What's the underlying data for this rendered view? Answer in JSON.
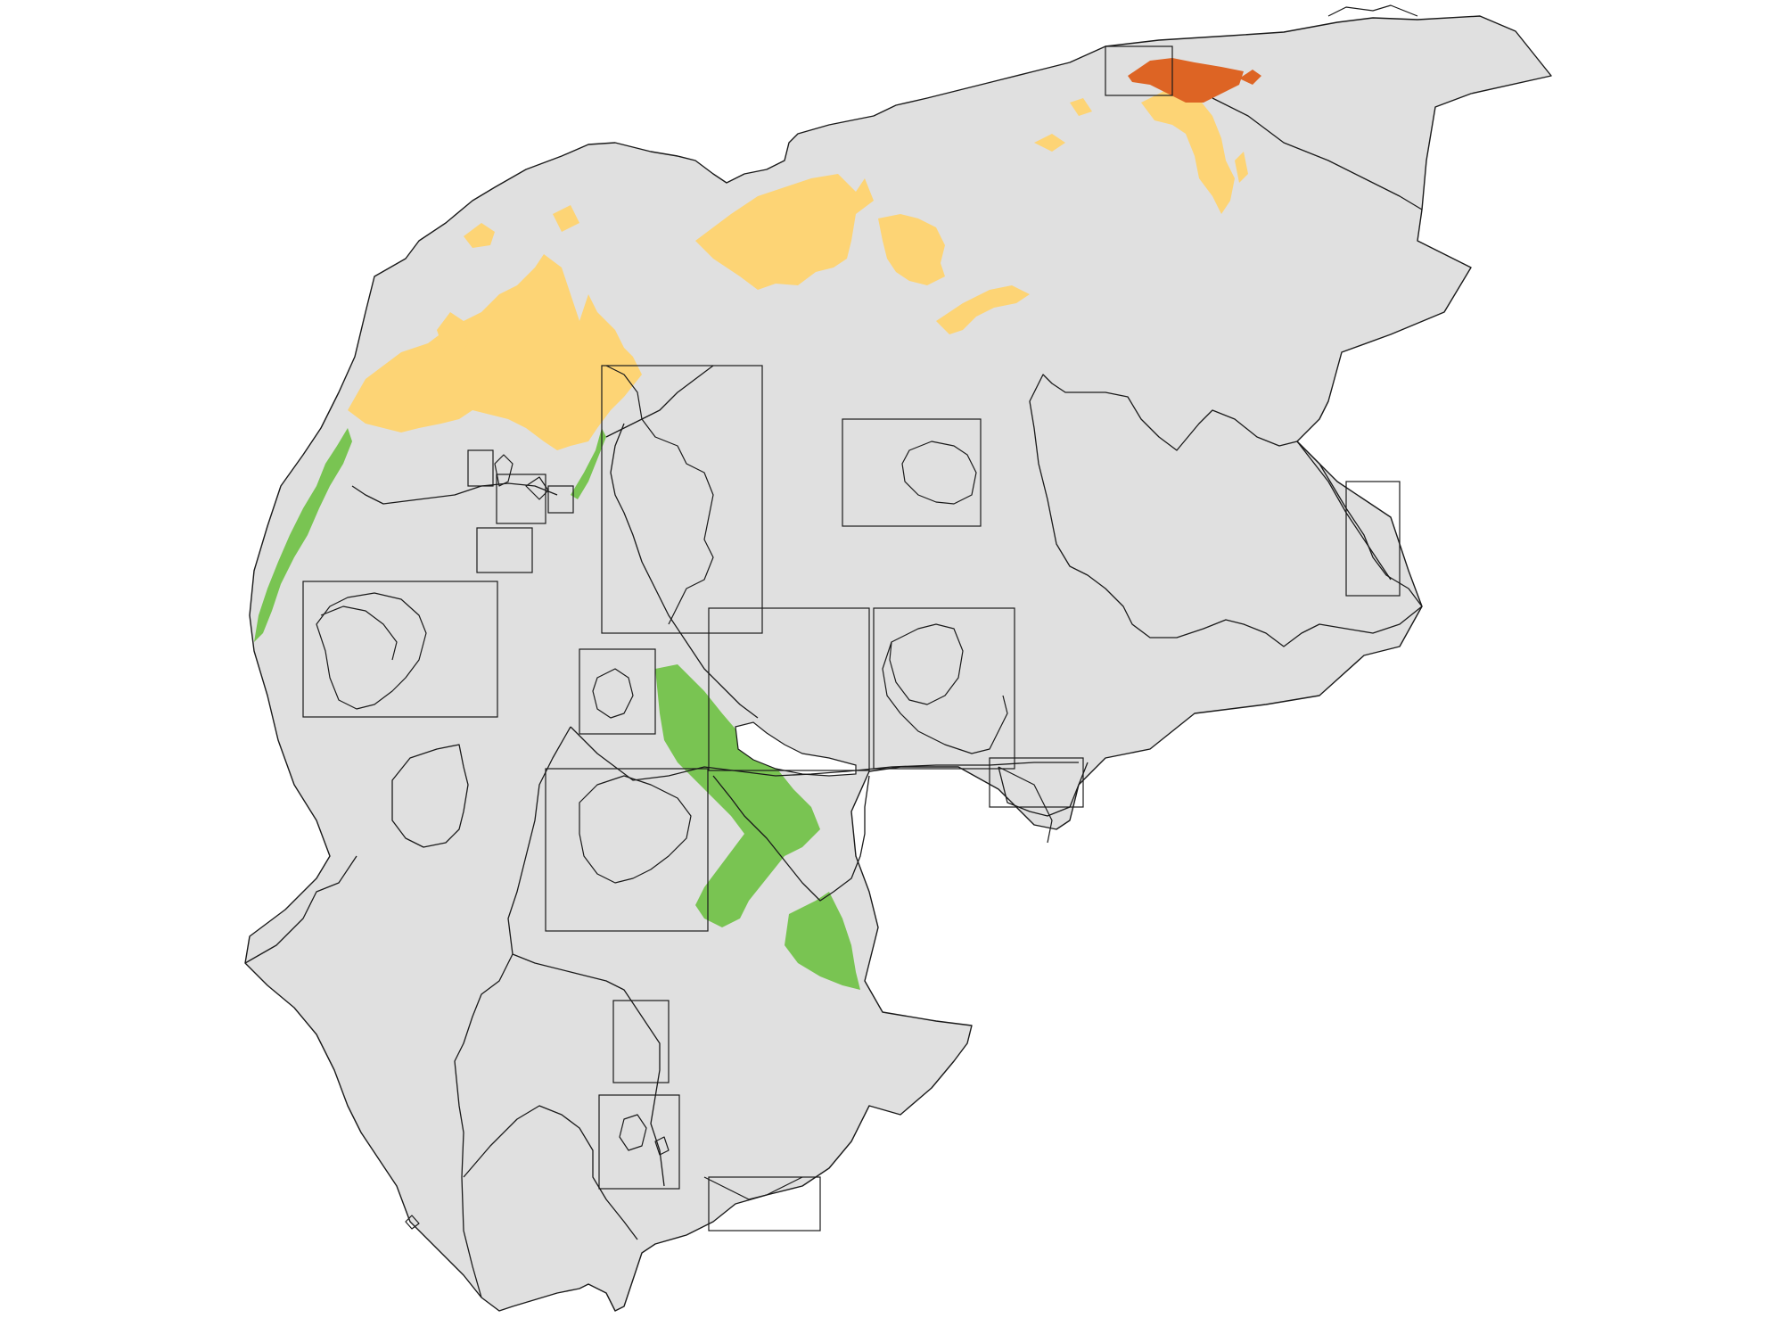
{
  "map": {
    "colors": {
      "land": "#e0e0e0",
      "border": "#1a1a1a",
      "background": "#ffffff",
      "zone_yellow": "#fdd475",
      "zone_green": "#79c452",
      "zone_orange": "#dd6424"
    },
    "zones": [
      "yellow-zone",
      "green-zone",
      "orange-zone"
    ],
    "inset_frames": 17
  }
}
